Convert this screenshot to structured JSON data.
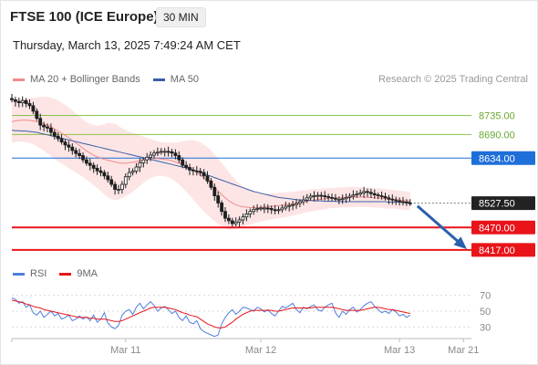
{
  "header": {
    "title": "FTSE 100 (ICE Europe)",
    "timeframe": "30 MIN",
    "datetime": "Thursday, March 13, 2025 7:49:24 AM CET"
  },
  "credit": "Research © 2025 Trading Central",
  "colors": {
    "bollinger_line": "#f28b8b",
    "bollinger_fill": "#fde0e0",
    "ma50": "#3a5fa8",
    "candle_up": "#1f1f1f",
    "candle_down": "#1f1f1f",
    "target_line": "#8bc34a",
    "target_text": "#6aa832",
    "resistance": "#1e6fd9",
    "support": "#e8141a",
    "price_tag": "#222222",
    "arrow": "#2b5fae",
    "rsi": "#4f7fdc",
    "rsi_ma": "#e8141a",
    "grid": "#d9d9d9",
    "axis_text": "#8a8a8a"
  },
  "chart_data": [
    {
      "type": "candlestick",
      "title": "FTSE 100 (ICE Europe)",
      "legend": [
        {
          "name": "MA 20 + Bollinger Bands",
          "color": "#f28b8b"
        },
        {
          "name": "MA 50",
          "color": "#3a5fa8"
        }
      ],
      "legend_placement": "top-left",
      "ylim": [
        8380,
        8790
      ],
      "x_ticks": [
        {
          "label": "Mar 11",
          "index": 32
        },
        {
          "label": "Mar 12",
          "index": 70
        },
        {
          "label": "Mar 13",
          "index": 109
        },
        {
          "label": "Mar 21",
          "index": 127
        }
      ],
      "close": [
        8772,
        8768,
        8765,
        8770,
        8763,
        8758,
        8745,
        8728,
        8712,
        8708,
        8705,
        8695,
        8686,
        8680,
        8672,
        8665,
        8660,
        8652,
        8645,
        8640,
        8630,
        8622,
        8617,
        8610,
        8604,
        8600,
        8592,
        8583,
        8572,
        8560,
        8560,
        8572,
        8590,
        8600,
        8603,
        8613,
        8623,
        8630,
        8636,
        8641,
        8646,
        8648,
        8650,
        8650,
        8649,
        8646,
        8640,
        8630,
        8617,
        8612,
        8606,
        8604,
        8603,
        8600,
        8592,
        8580,
        8565,
        8545,
        8528,
        8508,
        8492,
        8486,
        8479,
        8483,
        8488,
        8495,
        8502,
        8508,
        8513,
        8515,
        8516,
        8516,
        8515,
        8512,
        8510,
        8512,
        8516,
        8520,
        8522,
        8524,
        8527,
        8531,
        8535,
        8540,
        8544,
        8545,
        8546,
        8545,
        8543,
        8541,
        8539,
        8537,
        8537,
        8538,
        8541,
        8544,
        8547,
        8549,
        8552,
        8555,
        8553,
        8550,
        8547,
        8545,
        8543,
        8540,
        8537,
        8535,
        8533,
        8531,
        8530,
        8528,
        8527
      ],
      "ma20_values": [
        8720,
        8722,
        8723,
        8724,
        8724,
        8723,
        8722,
        8720,
        8718,
        8715,
        8712,
        8708,
        8703,
        8698,
        8693,
        8688,
        8682,
        8676,
        8670,
        8664,
        8657,
        8651,
        8646,
        8641,
        8637,
        8634,
        8631,
        8629,
        8627,
        8625,
        8623,
        8622,
        8622,
        8623,
        8624,
        8626,
        8628,
        8630,
        8632,
        8633,
        8633,
        8633,
        8632,
        8631,
        8630,
        8628,
        8625,
        8622,
        8619,
        8615,
        8611,
        8606,
        8600,
        8594,
        8587,
        8580,
        8572,
        8564,
        8556,
        8548,
        8540,
        8533,
        8528,
        8524,
        8521,
        8519,
        8518,
        8517,
        8517,
        8517,
        8517,
        8518,
        8519,
        8520,
        8521,
        8522,
        8523,
        8524,
        8525,
        8526,
        8528,
        8529,
        8531,
        8532,
        8534,
        8535,
        8536,
        8537,
        8538,
        8539,
        8540,
        8540,
        8541,
        8541,
        8541,
        8542,
        8542,
        8542,
        8542,
        8542,
        8541,
        8541,
        8540,
        8540,
        8539,
        8538,
        8537,
        8537,
        8536,
        8535,
        8534,
        8533,
        8533
      ],
      "bb_width": [
        50,
        50,
        50,
        51,
        52,
        53,
        55,
        58,
        61,
        64,
        67,
        69,
        71,
        72,
        72,
        72,
        72,
        71,
        70,
        69,
        68,
        68,
        69,
        71,
        74,
        78,
        83,
        88,
        90,
        90,
        87,
        83,
        78,
        74,
        70,
        65,
        60,
        55,
        50,
        46,
        43,
        41,
        40,
        40,
        41,
        43,
        46,
        50,
        55,
        60,
        65,
        70,
        74,
        77,
        79,
        80,
        80,
        79,
        77,
        75,
        72,
        68,
        63,
        58,
        53,
        48,
        44,
        40,
        37,
        35,
        33,
        32,
        31,
        31,
        30,
        30,
        30,
        29,
        29,
        28,
        28,
        27,
        27,
        26,
        26,
        26,
        25,
        25,
        25,
        24,
        24,
        24,
        24,
        24,
        24,
        24,
        24,
        23,
        23,
        23,
        23,
        23,
        23,
        23,
        23,
        23,
        23,
        22,
        22,
        22,
        22,
        22,
        22
      ],
      "ma50_values": [
        8700,
        8699,
        8699,
        8698,
        8698,
        8697,
        8696,
        8695,
        8693,
        8691,
        8689,
        8687,
        8685,
        8683,
        8681,
        8679,
        8677,
        8675,
        8673,
        8671,
        8669,
        8667,
        8665,
        8663,
        8661,
        8659,
        8657,
        8655,
        8653,
        8651,
        8649,
        8647,
        8645,
        8643,
        8641,
        8639,
        8637,
        8635,
        8633,
        8631,
        8629,
        8627,
        8625,
        8623,
        8621,
        8619,
        8617,
        8615,
        8613,
        8611,
        8609,
        8606,
        8603,
        8600,
        8597,
        8594,
        8591,
        8588,
        8585,
        8582,
        8579,
        8576,
        8573,
        8570,
        8567,
        8564,
        8561,
        8558,
        8555,
        8553,
        8551,
        8549,
        8547,
        8545,
        8543,
        8541,
        8540,
        8539,
        8538,
        8537,
        8536,
        8535,
        8535,
        8534,
        8534,
        8533,
        8533,
        8533,
        8532,
        8532,
        8532,
        8532,
        8531,
        8531,
        8531,
        8531,
        8531,
        8531,
        8531,
        8531,
        8531,
        8531,
        8531,
        8531,
        8531,
        8531,
        8530,
        8530,
        8530,
        8530,
        8530,
        8530,
        8530
      ],
      "levels": [
        {
          "label": "8735.00",
          "value": 8735,
          "kind": "target"
        },
        {
          "label": "8690.00",
          "value": 8690,
          "kind": "target"
        },
        {
          "label": "8634.00",
          "value": 8634,
          "kind": "resistance"
        },
        {
          "label": "8527.50",
          "value": 8527.5,
          "kind": "last"
        },
        {
          "label": "8470.00",
          "value": 8470,
          "kind": "support"
        },
        {
          "label": "8417.00",
          "value": 8417,
          "kind": "support"
        }
      ],
      "forecast_arrow": {
        "from": 8525,
        "to": 8420,
        "direction": "down"
      }
    },
    {
      "type": "line",
      "title": "",
      "legend": [
        {
          "name": "RSI",
          "color": "#4f7fdc"
        },
        {
          "name": "9MA",
          "color": "#e8141a"
        }
      ],
      "legend_placement": "top-left",
      "ylim": [
        20,
        80
      ],
      "y_ticks": [
        "70",
        "50",
        "30"
      ],
      "grid": true,
      "series": [
        {
          "name": "RSI",
          "values": [
            67,
            65,
            60,
            62,
            55,
            58,
            48,
            45,
            50,
            42,
            46,
            50,
            44,
            47,
            40,
            42,
            45,
            38,
            40,
            44,
            40,
            43,
            38,
            45,
            36,
            40,
            48,
            35,
            30,
            28,
            32,
            45,
            50,
            52,
            46,
            55,
            60,
            53,
            58,
            62,
            57,
            50,
            54,
            56,
            52,
            47,
            50,
            42,
            38,
            44,
            36,
            34,
            38,
            28,
            24,
            22,
            20,
            18,
            20,
            34,
            42,
            48,
            52,
            46,
            50,
            55,
            54,
            52,
            50,
            55,
            53,
            49,
            52,
            47,
            44,
            50,
            56,
            54,
            57,
            60,
            52,
            48,
            55,
            53,
            56,
            58,
            52,
            50,
            55,
            58,
            60,
            48,
            42,
            50,
            46,
            52,
            55,
            49,
            52,
            57,
            60,
            62,
            56,
            52,
            48,
            50,
            47,
            52,
            49,
            44,
            46,
            42,
            45
          ]
        },
        {
          "name": "9MA",
          "values": [
            64,
            63,
            62,
            61,
            59,
            58,
            56,
            55,
            54,
            52,
            51,
            50,
            49,
            48,
            47,
            46,
            45,
            44,
            43,
            42,
            42,
            42,
            41,
            41,
            40,
            40,
            40,
            39,
            38,
            37,
            37,
            38,
            40,
            42,
            44,
            46,
            48,
            50,
            52,
            54,
            55,
            55,
            55,
            55,
            54,
            53,
            52,
            50,
            48,
            47,
            45,
            44,
            43,
            40,
            37,
            34,
            32,
            30,
            29,
            29,
            30,
            33,
            36,
            40,
            43,
            46,
            48,
            50,
            51,
            51,
            51,
            51,
            51,
            51,
            50,
            50,
            51,
            52,
            53,
            54,
            54,
            54,
            54,
            54,
            54,
            55,
            55,
            55,
            55,
            55,
            55,
            54,
            53,
            52,
            51,
            51,
            51,
            51,
            51,
            52,
            53,
            54,
            55,
            55,
            54,
            53,
            52,
            52,
            51,
            50,
            49,
            48,
            47
          ]
        }
      ]
    }
  ]
}
